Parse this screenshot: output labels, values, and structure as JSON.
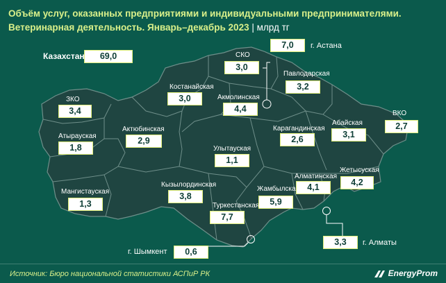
{
  "header": {
    "title": "Объём услуг, оказанных предприятиями и индивидуальными предпринимателями.",
    "subtitle": "Ветеринарная деятельность. Январь–декабрь 2023",
    "unit": "| млрд тг"
  },
  "colors": {
    "background": "#0b5a4c",
    "land": "#1f4541",
    "border": "#6f8f8a",
    "accent": "#d9f08a",
    "box_border": "#e2f07a"
  },
  "kazakhstan": {
    "label": "Казахстан",
    "value": "69,0"
  },
  "regions": [
    {
      "key": "zko",
      "label": "ЗКО",
      "value": "3,4"
    },
    {
      "key": "atyrau",
      "label": "Атырауская",
      "value": "1,8"
    },
    {
      "key": "mangistau",
      "label": "Мангистауская",
      "value": "1,3"
    },
    {
      "key": "aktobe",
      "label": "Актюбинская",
      "value": "2,9"
    },
    {
      "key": "kostanay",
      "label": "Костанайская",
      "value": "3,0"
    },
    {
      "key": "sko",
      "label": "СКО",
      "value": "3,0"
    },
    {
      "key": "akmola",
      "label": "Акмолинская",
      "value": "4,4"
    },
    {
      "key": "pavlodar",
      "label": "Павлодарская",
      "value": "3,2"
    },
    {
      "key": "vko",
      "label": "ВКО",
      "value": "2,7"
    },
    {
      "key": "abay",
      "label": "Абайская",
      "value": "3,1"
    },
    {
      "key": "karaganda",
      "label": "Карагандинская",
      "value": "2,6"
    },
    {
      "key": "ulytau",
      "label": "Улытауская",
      "value": "1,1"
    },
    {
      "key": "kyzylorda",
      "label": "Кызылординская",
      "value": "3,8"
    },
    {
      "key": "turkestan",
      "label": "Туркестанская",
      "value": "7,7"
    },
    {
      "key": "zhambyl",
      "label": "Жамбылская",
      "value": "5,9"
    },
    {
      "key": "almaty_reg",
      "label": "Алматинская",
      "value": "4,1"
    },
    {
      "key": "zhetysu",
      "label": "Жетысуская",
      "value": "4,2"
    }
  ],
  "cities": [
    {
      "key": "astana",
      "label": "г. Астана",
      "value": "7,0"
    },
    {
      "key": "almaty",
      "label": "г. Алматы",
      "value": "3,3"
    },
    {
      "key": "shymkent",
      "label": "г. Шымкент",
      "value": "0,6"
    }
  ],
  "footer": {
    "source": "Источник: Бюро национальной статистики АСПиР РК",
    "brand": "EnergyProm"
  }
}
